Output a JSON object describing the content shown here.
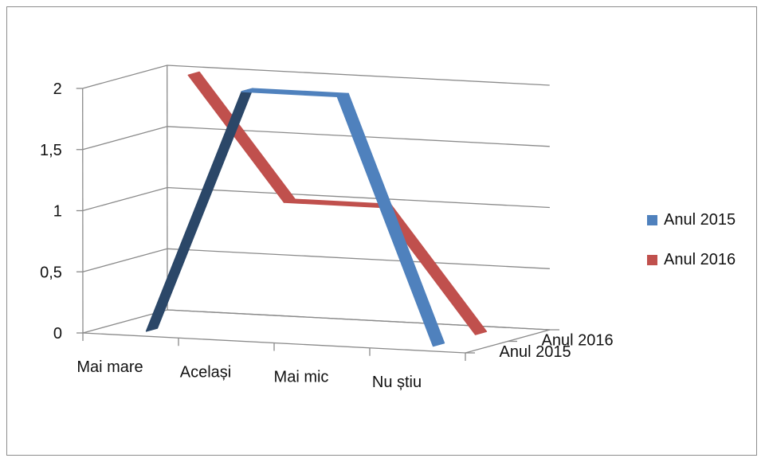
{
  "chart_data": {
    "type": "line",
    "style": "3d-line",
    "categories": [
      "Mai mare",
      "Același",
      "Mai mic",
      "Nu știu"
    ],
    "series": [
      {
        "name": "Anul 2015",
        "color": "#4f81bd",
        "values": [
          0,
          2,
          2,
          0
        ]
      },
      {
        "name": "Anul 2016",
        "color": "#c0504d",
        "values": [
          2,
          1,
          1,
          0
        ]
      }
    ],
    "y_ticks": [
      "0",
      "0,5",
      "1",
      "1,5",
      "2"
    ],
    "depth_labels": [
      "Anul 2015",
      "Anul 2016"
    ],
    "ylim": [
      0,
      2
    ],
    "grid": true,
    "legend_position": "right"
  }
}
